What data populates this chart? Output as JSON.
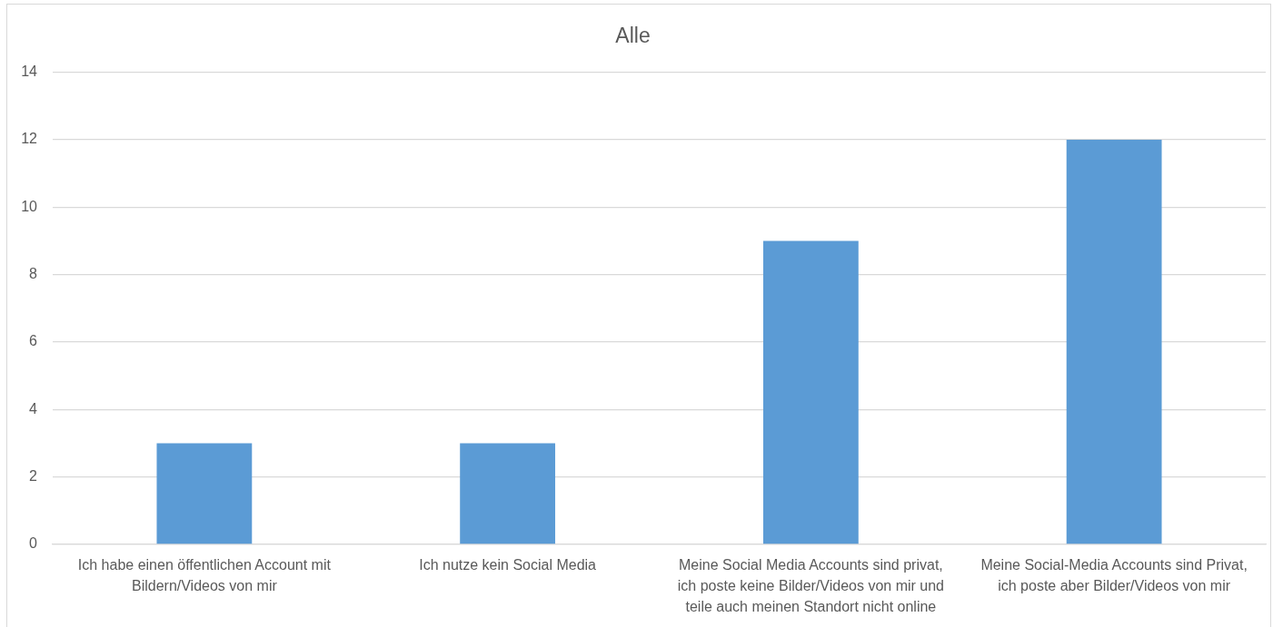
{
  "chart_data": {
    "type": "bar",
    "title": "Alle",
    "categories": [
      "Ich habe einen öffentlichen Account mit Bildern/Videos von mir",
      "Ich nutze kein Social Media",
      "Meine Social Media Accounts sind privat, ich poste keine Bilder/Videos von mir und teile auch meinen Standort nicht online",
      "Meine Social-Media Accounts sind Privat, ich poste aber Bilder/Videos von mir"
    ],
    "values": [
      3,
      3,
      9,
      12
    ],
    "color": "#5b9bd5",
    "ylim": [
      0,
      14
    ],
    "yticks": [
      0,
      2,
      4,
      6,
      8,
      10,
      12,
      14
    ],
    "grid": "y"
  }
}
